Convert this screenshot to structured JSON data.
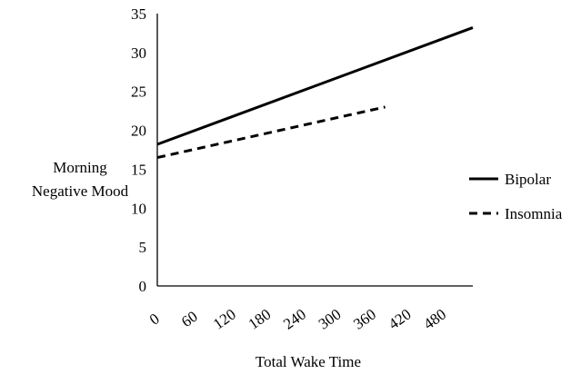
{
  "chart_data": {
    "type": "line",
    "xlabel": "Total Wake Time",
    "ylabel": [
      "Morning",
      "Negative Mood"
    ],
    "x_ticks": [
      "0",
      "60",
      "120",
      "180",
      "240",
      "300",
      "360",
      "420",
      "480"
    ],
    "y_ticks": [
      "0",
      "5",
      "10",
      "15",
      "20",
      "25",
      "30",
      "35"
    ],
    "xlim": [
      0,
      540
    ],
    "ylim": [
      0,
      35
    ],
    "grid": false,
    "legend_position": "right",
    "series": [
      {
        "name": "Bipolar",
        "style": "solid",
        "color": "#000000",
        "x": [
          0,
          540
        ],
        "y": [
          18.2,
          33.2
        ]
      },
      {
        "name": "Insomnia",
        "style": "dashed",
        "color": "#000000",
        "x": [
          0,
          390
        ],
        "y": [
          16.5,
          23.0
        ]
      }
    ]
  }
}
